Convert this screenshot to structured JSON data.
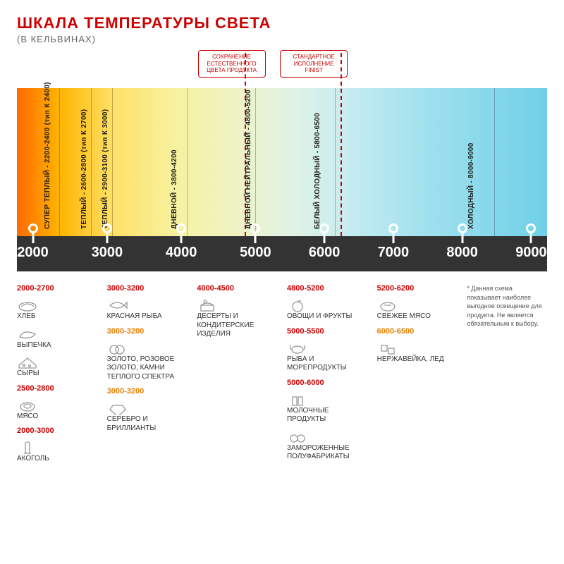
{
  "title": "ШКАЛА ТЕМПЕРАТУРЫ СВЕТА",
  "subtitle": "(В КЕЛЬВИНАХ)",
  "callouts": [
    {
      "text": "СОХРАНЕНИЕ ЕСТЕСТВЕННОГО ЦВЕТА ПРОДУКТА",
      "leftPct": 40.5
    },
    {
      "text": "СТАНДАРТНОЕ ИСПОЛНЕНИЕ FINIST",
      "leftPct": 56
    }
  ],
  "spectrum_stops": [
    {
      "pct": 0,
      "color": "#ff6a00"
    },
    {
      "pct": 8,
      "color": "#ffb400"
    },
    {
      "pct": 18,
      "color": "#ffe066"
    },
    {
      "pct": 30,
      "color": "#f7f2a0"
    },
    {
      "pct": 42,
      "color": "#eef3c7"
    },
    {
      "pct": 52,
      "color": "#e0f2e6"
    },
    {
      "pct": 62,
      "color": "#c8ecf0"
    },
    {
      "pct": 78,
      "color": "#9fe0ee"
    },
    {
      "pct": 100,
      "color": "#6fd0e8"
    }
  ],
  "band_color": "#333333",
  "vlabels": [
    {
      "leftPct": 5,
      "text": "СУПЕР ТЕПЛЫЙ - 2200-2400 (тип К 2400)"
    },
    {
      "leftPct": 12,
      "text": "ТЕПЛЫЙ - 2600-2800 (тип К 2700)"
    },
    {
      "leftPct": 16,
      "text": "ТЕПЛЫЙ - 2900-3100 (тип К 3000)"
    },
    {
      "leftPct": 29,
      "text": "ДНЕВНОЙ - 3800-4200"
    },
    {
      "leftPct": 43,
      "text": "ДНЕВНОЙ НЕЙТРАЛЬНЫЙ - 4800-5200"
    },
    {
      "leftPct": 56,
      "text": "БЕЛЫЙ ХОЛОДНЫЙ - 5800-6500"
    },
    {
      "leftPct": 85,
      "text": "ХОЛОДНЫЙ - 8000-9000"
    }
  ],
  "separators_pct": [
    8,
    14,
    18,
    32,
    45,
    60,
    90
  ],
  "dashed_pct": [
    43,
    61
  ],
  "ticks": [
    {
      "value": "2000",
      "pct": 3
    },
    {
      "value": "3000",
      "pct": 17
    },
    {
      "value": "4000",
      "pct": 31
    },
    {
      "value": "5000",
      "pct": 45
    },
    {
      "value": "6000",
      "pct": 58
    },
    {
      "value": "7000",
      "pct": 71
    },
    {
      "value": "8000",
      "pct": 84
    },
    {
      "value": "9000",
      "pct": 97
    }
  ],
  "legend_cols": [
    [
      {
        "range": "2000-2700",
        "cls": "range-red"
      },
      {
        "icon": "bread",
        "label": "ХЛЕБ"
      },
      {
        "icon": "croissant",
        "label": "ВЫПЕЧКА"
      },
      {
        "icon": "cheese",
        "label": "СЫРЫ"
      },
      {
        "range": "2500-2800",
        "cls": "range-red"
      },
      {
        "icon": "steak",
        "label": "МЯСО"
      },
      {
        "range": "2000-3000",
        "cls": "range-red"
      },
      {
        "icon": "wine",
        "label": "АКОГОЛЬ"
      }
    ],
    [
      {
        "range": "3000-3200",
        "cls": "range-red"
      },
      {
        "icon": "fish",
        "label": "КРАСНАЯ РЫБА"
      },
      {
        "range": "3000-3200",
        "cls": "range-orange"
      },
      {
        "icon": "ring",
        "label": "ЗОЛОТО, РОЗОВОЕ ЗОЛОТО, КАМНИ ТЕПЛОГО СПЕКТРА"
      },
      {
        "range": "3000-3200",
        "cls": "range-orange"
      },
      {
        "icon": "gem",
        "label": "СЕРЕБРО И БРИЛЛИАНТЫ"
      }
    ],
    [
      {
        "range": "4000-4500",
        "cls": "range-red"
      },
      {
        "icon": "cake",
        "label": "ДЕСЕРТЫ И КОНДИТЕРСКИЕ ИЗДЕЛИЯ"
      }
    ],
    [
      {
        "range": "4800-5200",
        "cls": "range-red"
      },
      {
        "icon": "apple",
        "label": "ОВОЩИ И ФРУКТЫ"
      },
      {
        "range": "5000-5500",
        "cls": "range-red"
      },
      {
        "icon": "crab",
        "label": "РЫБА И МОРЕПРОДУКТЫ"
      },
      {
        "range": "5000-6000",
        "cls": "range-red"
      },
      {
        "icon": "milk",
        "label": "МОЛОЧНЫЕ ПРОДУКТЫ"
      },
      {
        "icon": "frozen",
        "label": "ЗАМОРОЖЕННЫЕ ПОЛУФАБРИКАТЫ"
      }
    ],
    [
      {
        "range": "5200-6200",
        "cls": "range-red"
      },
      {
        "icon": "meat",
        "label": "СВЕЖЕЕ МЯСО"
      },
      {
        "range": "6000-6500",
        "cls": "range-orange"
      },
      {
        "icon": "ice",
        "label": "НЕРЖАВЕЙКА, ЛЕД"
      }
    ]
  ],
  "footnote": "*   Данная схема показывает наиболее выгодное освещение для продукта. Не является обязательным к выбору.",
  "colors": {
    "title": "#c00",
    "orange": "#e67e00",
    "text": "#333"
  }
}
